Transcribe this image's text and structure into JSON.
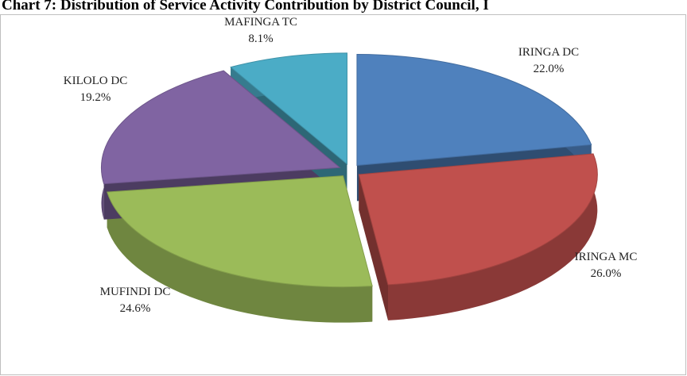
{
  "chart_data": {
    "type": "pie",
    "title": "Chart 7: Distribution of Service Activity Contribution by District Council, I",
    "categories": [
      "IRINGA DC",
      "IRINGA MC",
      "MUFINDI DC",
      "KILOLO DC",
      "MAFINGA TC"
    ],
    "values": [
      22.0,
      26.0,
      24.6,
      19.2,
      8.1
    ],
    "value_labels": [
      "22.0%",
      "26.0%",
      "24.6%",
      "19.2%",
      "8.1%"
    ],
    "colors": [
      "#4f81bd",
      "#c0504d",
      "#9bbb59",
      "#8064a2",
      "#4bacc6"
    ]
  }
}
